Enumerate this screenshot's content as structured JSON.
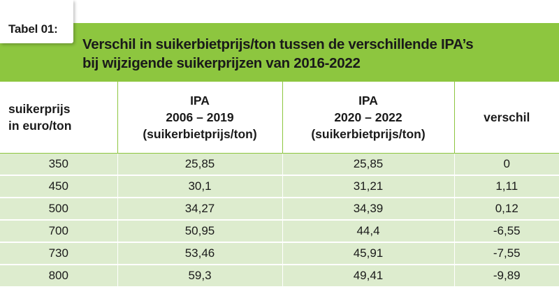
{
  "tag": "Tabel 01:",
  "title": {
    "line1": "Verschil in suikerbietprijs/ton tussen de verschillende IPA’s",
    "line2": "bij wijzigende suikerprijzen van 2016-2022"
  },
  "columns": [
    {
      "lines": [
        "suikerprijs",
        "in euro/ton"
      ]
    },
    {
      "lines": [
        "IPA",
        "2006 – 2019",
        "(suikerbietprijs/ton)"
      ]
    },
    {
      "lines": [
        "IPA",
        "2020 – 2022",
        "(suikerbietprijs/ton)"
      ]
    },
    {
      "lines": [
        "verschil"
      ]
    }
  ],
  "rows": [
    [
      "350",
      "25,85",
      "25,85",
      "0"
    ],
    [
      "450",
      "30,1",
      "31,21",
      "1,11"
    ],
    [
      "500",
      "34,27",
      "34,39",
      "0,12"
    ],
    [
      "700",
      "50,95",
      "44,4",
      "-6,55"
    ],
    [
      "730",
      "53,46",
      "45,91",
      "-7,55"
    ],
    [
      "800",
      "59,3",
      "49,41",
      "-9,89"
    ]
  ],
  "colors": {
    "accent_green": "#8dc63f",
    "row_fill": "#ddecce"
  }
}
